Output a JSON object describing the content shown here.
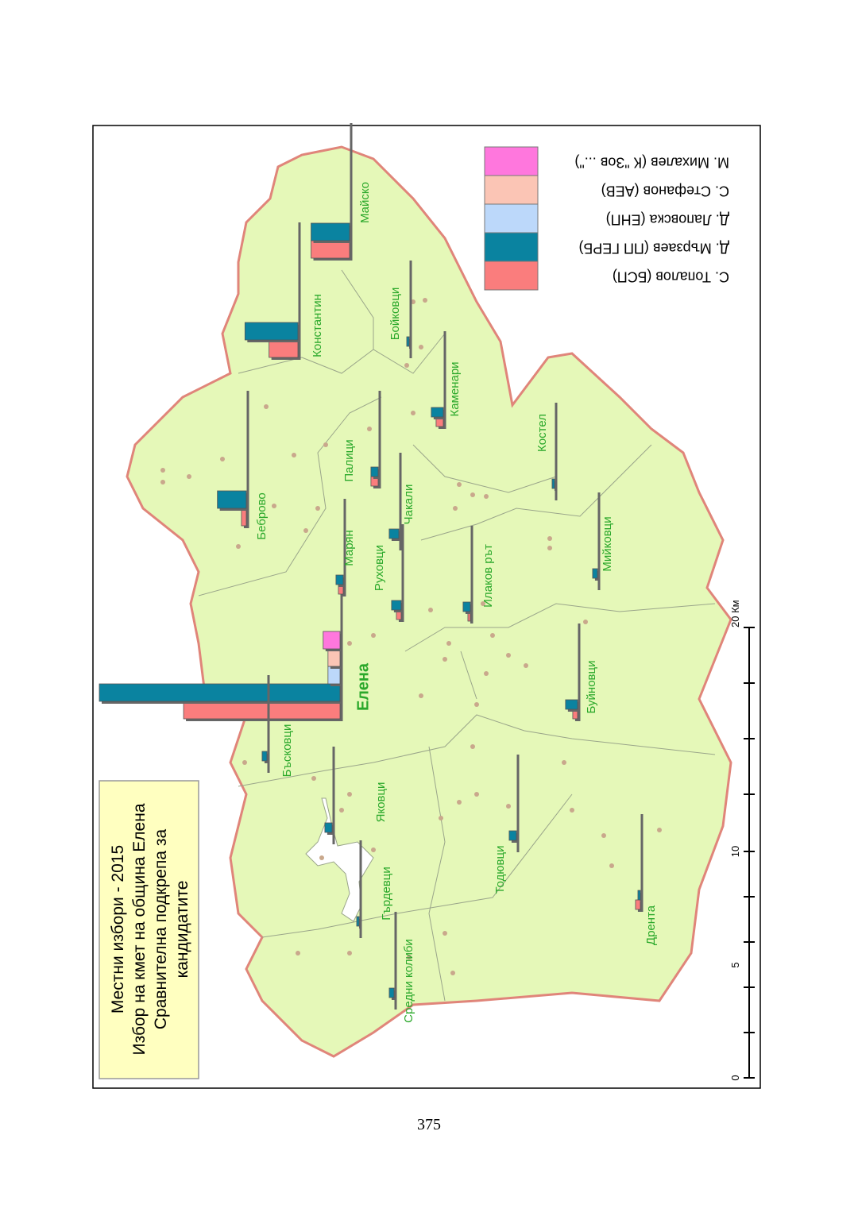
{
  "page_number": "375",
  "title": {
    "lines": [
      "Местни избори - 2015",
      "Избор на кмет на община Елена",
      "Сравнителна подкрепа за",
      "кандидатите"
    ]
  },
  "legend": [
    {
      "label": "М. Михалев (К \"Зов ...\")",
      "color": "#ff77dd"
    },
    {
      "label": "С. Стефанов (АЕВ)",
      "color": "#fbc5b5"
    },
    {
      "label": "Д. Лаповска (ЕНП)",
      "color": "#bcd8fa"
    },
    {
      "label": "Д. Мързаев (ПП ГЕРБ)",
      "color": "#0a83a0"
    },
    {
      "label": "С. Топалов (БСП)",
      "color": "#fa7d7d"
    }
  ],
  "scale_bar": {
    "ticks": [
      "0",
      "5",
      "10",
      "20 Км"
    ]
  },
  "colors": {
    "land": "#e5f8b8",
    "border": "#e0857a",
    "label": "#2aa82a",
    "title_bg": "#ffffc0",
    "settlement": "#c9a88c"
  },
  "chart_data": {
    "type": "bar",
    "note_unit": "relative support (Елена, ПП ГЕРБ = 100)",
    "series_order": [
      "М. Михалев (К \"Зов ...\")",
      "С. Стефанов (АЕВ)",
      "Д. Лаповска (ЕНП)",
      "Д. Мързаев (ПП ГЕРБ)",
      "С. Топалов (БСП)"
    ],
    "villages": [
      {
        "name": "Елена",
        "bold": true,
        "values": [
          7,
          5,
          5,
          100,
          65
        ]
      },
      {
        "name": "Майско",
        "values": [
          0,
          0,
          0,
          16,
          16
        ]
      },
      {
        "name": "Константин",
        "values": [
          0,
          0,
          0,
          22,
          12
        ]
      },
      {
        "name": "Бойковци",
        "values": [
          0,
          0,
          0,
          1,
          0
        ]
      },
      {
        "name": "Каменари",
        "values": [
          0,
          0,
          0,
          5,
          3
        ]
      },
      {
        "name": "Палици",
        "values": [
          0,
          0,
          0,
          3,
          3
        ]
      },
      {
        "name": "Костел",
        "values": [
          0,
          0,
          0,
          1,
          0
        ]
      },
      {
        "name": "Беброво",
        "values": [
          0,
          0,
          0,
          12,
          2
        ]
      },
      {
        "name": "Чакали",
        "values": [
          0,
          0,
          0,
          4,
          0
        ]
      },
      {
        "name": "Марян",
        "values": [
          0,
          0,
          0,
          3,
          2
        ]
      },
      {
        "name": "Руховци",
        "values": [
          0,
          0,
          0,
          4,
          2
        ]
      },
      {
        "name": "Илаков рът",
        "values": [
          0,
          0,
          0,
          3,
          1
        ]
      },
      {
        "name": "Мийковци",
        "values": [
          0,
          0,
          0,
          2,
          0
        ]
      },
      {
        "name": "Буйновци",
        "values": [
          0,
          0,
          0,
          5,
          2
        ]
      },
      {
        "name": "Бъсковци",
        "values": [
          0,
          0,
          0,
          2,
          0
        ]
      },
      {
        "name": "Яковци",
        "values": [
          0,
          0,
          0,
          3,
          0
        ]
      },
      {
        "name": "Тодювци",
        "values": [
          0,
          0,
          0,
          3,
          0
        ]
      },
      {
        "name": "Гърдевци",
        "values": [
          0,
          0,
          0,
          1,
          0
        ]
      },
      {
        "name": "Средни колиби",
        "values": [
          0,
          0,
          0,
          2,
          0
        ]
      },
      {
        "name": "Дрента",
        "values": [
          0,
          0,
          0,
          1,
          2
        ]
      }
    ]
  }
}
